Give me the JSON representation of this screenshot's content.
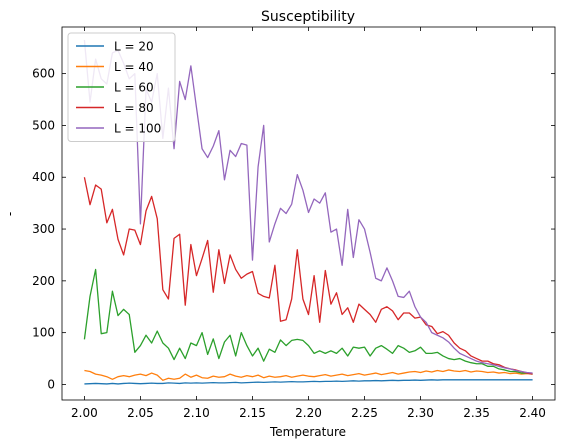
{
  "chart_data": {
    "type": "line",
    "title": "Susceptibility",
    "xlabel": "Temperature",
    "ylabel": "-",
    "xlim": [
      1.98,
      2.42
    ],
    "ylim": [
      -30,
      690
    ],
    "x_ticks": [
      "2.00",
      "2.05",
      "2.10",
      "2.15",
      "2.20",
      "2.25",
      "2.30",
      "2.35",
      "2.40"
    ],
    "y_ticks": [
      "0",
      "100",
      "200",
      "300",
      "400",
      "500",
      "600"
    ],
    "legend_position": "upper-left",
    "grid": false,
    "x": [
      2.0,
      2.005,
      2.01,
      2.015,
      2.02,
      2.025,
      2.03,
      2.035,
      2.04,
      2.045,
      2.05,
      2.055,
      2.06,
      2.065,
      2.07,
      2.075,
      2.08,
      2.085,
      2.09,
      2.095,
      2.1,
      2.105,
      2.11,
      2.115,
      2.12,
      2.125,
      2.13,
      2.135,
      2.14,
      2.145,
      2.15,
      2.155,
      2.16,
      2.165,
      2.17,
      2.175,
      2.18,
      2.185,
      2.19,
      2.195,
      2.2,
      2.205,
      2.21,
      2.215,
      2.22,
      2.225,
      2.23,
      2.235,
      2.24,
      2.245,
      2.25,
      2.255,
      2.26,
      2.265,
      2.27,
      2.275,
      2.28,
      2.285,
      2.29,
      2.295,
      2.3,
      2.305,
      2.31,
      2.315,
      2.32,
      2.325,
      2.33,
      2.335,
      2.34,
      2.345,
      2.35,
      2.355,
      2.36,
      2.365,
      2.37,
      2.375,
      2.38,
      2.385,
      2.39,
      2.395,
      2.4
    ],
    "series": [
      {
        "name": "L = 20",
        "color": "#1f77b4",
        "values": [
          1,
          1.5,
          2,
          1.5,
          1,
          2,
          1,
          2,
          2.5,
          2,
          1.5,
          2,
          2.5,
          2,
          2,
          3,
          2.5,
          2,
          3,
          2.5,
          3,
          2.5,
          3,
          3.5,
          3,
          3,
          3.5,
          4,
          3,
          3.5,
          4,
          4.5,
          4,
          4.5,
          5,
          4.5,
          5,
          5.5,
          5,
          5,
          5.5,
          6,
          5.5,
          6,
          6,
          6.5,
          6,
          6.5,
          7,
          6.5,
          7,
          7,
          7.5,
          7,
          7.5,
          8,
          7.5,
          8,
          8,
          8.5,
          8,
          8.5,
          9,
          8.5,
          9,
          9,
          9,
          9,
          9,
          9,
          9,
          9,
          9,
          9,
          9,
          9,
          9,
          9,
          9,
          9,
          9
        ]
      },
      {
        "name": "L = 40",
        "color": "#ff7f0e",
        "values": [
          27,
          25,
          20,
          18,
          15,
          10,
          15,
          17,
          15,
          18,
          20,
          17,
          22,
          18,
          8,
          12,
          10,
          12,
          20,
          14,
          18,
          13,
          12,
          16,
          14,
          15,
          20,
          16,
          14,
          17,
          15,
          18,
          13,
          16,
          14,
          15,
          17,
          14,
          16,
          18,
          16,
          15,
          17,
          19,
          16,
          18,
          20,
          17,
          19,
          21,
          18,
          20,
          22,
          19,
          21,
          23,
          20,
          22,
          24,
          25,
          23,
          26,
          24,
          27,
          25,
          28,
          26,
          25,
          27,
          24,
          26,
          25,
          23,
          24,
          22,
          23,
          21,
          22,
          20,
          21,
          20
        ]
      },
      {
        "name": "L = 60",
        "color": "#2ca02c",
        "values": [
          87,
          170,
          222,
          98,
          100,
          180,
          133,
          145,
          135,
          62,
          75,
          95,
          80,
          103,
          80,
          70,
          48,
          70,
          50,
          80,
          75,
          100,
          58,
          88,
          50,
          82,
          95,
          55,
          100,
          75,
          55,
          70,
          45,
          68,
          62,
          86,
          75,
          85,
          87,
          85,
          75,
          60,
          65,
          60,
          65,
          60,
          70,
          55,
          72,
          70,
          72,
          55,
          70,
          75,
          68,
          60,
          75,
          70,
          62,
          65,
          72,
          60,
          60,
          62,
          55,
          50,
          48,
          50,
          45,
          42,
          40,
          40,
          35,
          35,
          30,
          28,
          25,
          25,
          22,
          22,
          20
        ]
      },
      {
        "name": "L = 80",
        "color": "#d62728",
        "values": [
          400,
          347,
          385,
          377,
          312,
          338,
          280,
          250,
          300,
          298,
          270,
          335,
          363,
          320,
          183,
          165,
          282,
          290,
          153,
          270,
          210,
          243,
          278,
          178,
          260,
          195,
          250,
          222,
          205,
          213,
          218,
          176,
          170,
          167,
          230,
          122,
          125,
          165,
          260,
          165,
          135,
          210,
          120,
          220,
          155,
          177,
          135,
          148,
          120,
          155,
          145,
          135,
          120,
          145,
          150,
          142,
          125,
          138,
          138,
          128,
          130,
          115,
          112,
          98,
          102,
          95,
          80,
          70,
          65,
          55,
          50,
          45,
          45,
          40,
          38,
          33,
          30,
          28,
          25,
          22,
          20
        ]
      },
      {
        "name": "L = 100",
        "color": "#9467bd",
        "values": [
          665,
          545,
          628,
          590,
          580,
          640,
          645,
          620,
          590,
          600,
          310,
          570,
          545,
          600,
          475,
          572,
          455,
          585,
          550,
          615,
          535,
          455,
          438,
          460,
          490,
          395,
          452,
          440,
          465,
          462,
          240,
          420,
          500,
          275,
          310,
          340,
          330,
          348,
          405,
          375,
          332,
          358,
          350,
          370,
          294,
          300,
          230,
          338,
          245,
          318,
          300,
          255,
          205,
          200,
          225,
          200,
          170,
          168,
          180,
          150,
          130,
          120,
          100,
          95,
          90,
          82,
          70,
          60,
          55,
          50,
          45,
          42,
          40,
          38,
          35,
          32,
          30,
          27,
          25,
          23,
          22
        ]
      }
    ]
  }
}
